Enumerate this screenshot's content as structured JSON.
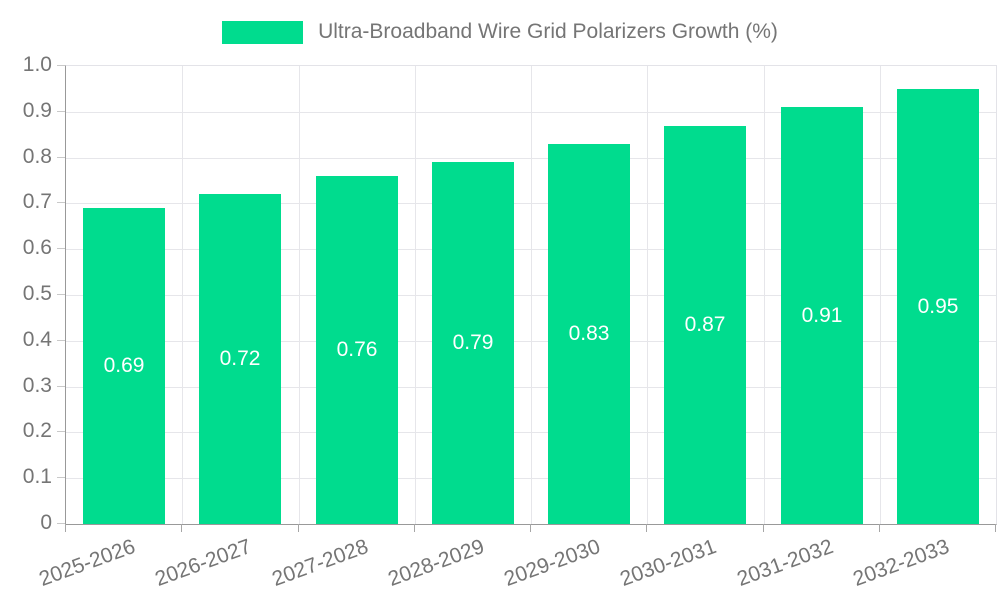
{
  "legend": {
    "label": "Ultra-Broadband Wire Grid Polarizers Growth (%)"
  },
  "colors": {
    "bar": "#00DC8E",
    "axis_text": "#757575",
    "value_label_text": "#ffffff",
    "gridline": "#e6e6ea",
    "axis_line": "#999999",
    "background": "#ffffff"
  },
  "chart_data": {
    "type": "bar",
    "title": "Ultra-Broadband Wire Grid Polarizers Growth (%)",
    "categories": [
      "2025-2026",
      "2026-2027",
      "2027-2028",
      "2028-2029",
      "2029-2030",
      "2030-2031",
      "2031-2032",
      "2032-2033"
    ],
    "values": [
      0.69,
      0.72,
      0.76,
      0.79,
      0.83,
      0.87,
      0.91,
      0.95
    ],
    "value_labels": [
      "0.69",
      "0.72",
      "0.76",
      "0.79",
      "0.83",
      "0.87",
      "0.91",
      "0.95"
    ],
    "xlabel": "",
    "ylabel": "",
    "ylim": [
      0,
      1.0
    ],
    "ytick_step": 0.1,
    "ytick_labels": [
      "0",
      "0.1",
      "0.2",
      "0.3",
      "0.4",
      "0.5",
      "0.6",
      "0.7",
      "0.8",
      "0.9",
      "1.0"
    ],
    "grid": true,
    "legend_position": "top-center",
    "bar_label_position": "inside-middle",
    "xtick_rotation_deg": -20
  }
}
